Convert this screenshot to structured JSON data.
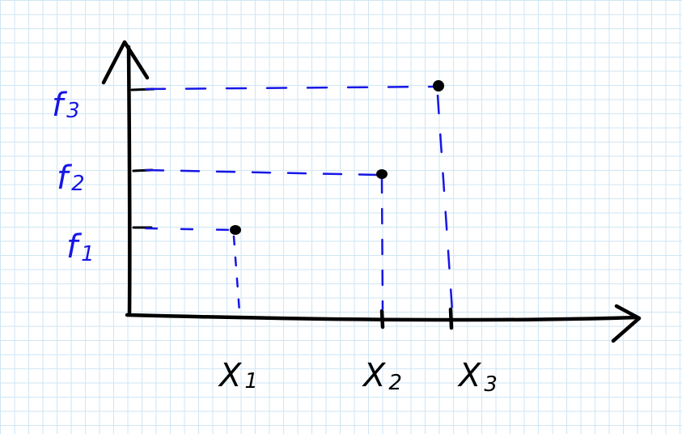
{
  "colors": {
    "ink": "#000000",
    "accent": "#1616e6",
    "grid": "#cfe6f4",
    "background": "#ffffff"
  },
  "y_labels": [
    {
      "base": "f",
      "sub": "1"
    },
    {
      "base": "f",
      "sub": "2"
    },
    {
      "base": "f",
      "sub": "3"
    }
  ],
  "x_labels": [
    {
      "base": "X",
      "sub": "1"
    },
    {
      "base": "X",
      "sub": "2"
    },
    {
      "base": "X",
      "sub": "3"
    }
  ]
}
